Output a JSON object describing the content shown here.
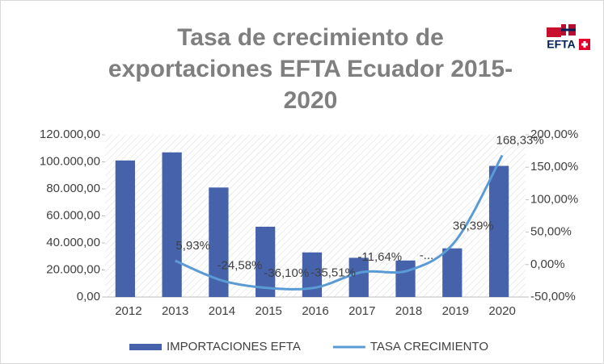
{
  "chart_data": {
    "type": "bar_line",
    "title": [
      "Tasa de crecimiento de",
      "exportaciones EFTA Ecuador 2015-",
      "2020"
    ],
    "logo": "EFTA",
    "categories": [
      "2012",
      "2013",
      "2014",
      "2015",
      "2016",
      "2017",
      "2018",
      "2019",
      "2020"
    ],
    "series": [
      {
        "name": "IMPORTACIONES EFTA",
        "color": "#4562ab",
        "type": "bar",
        "values": [
          101000,
          107000,
          81000,
          52000,
          33000,
          29000,
          27000,
          36000,
          97000
        ]
      },
      {
        "name": "TASA CRECIMIENTO",
        "color": "#5b9bd5",
        "type": "line",
        "axis": "y2",
        "values": [
          null,
          5.93,
          -24.58,
          -36.1,
          -35.51,
          -11.64,
          -9,
          36.39,
          168.33
        ],
        "value_labels": [
          null,
          "5,93%",
          "-24,58%",
          "-36,10%",
          "-35,51%",
          "-11,64%",
          "-...",
          "36,39%",
          "168,33%"
        ]
      }
    ],
    "ylim": [
      0,
      120000
    ],
    "yticks": [
      {
        "value": 0,
        "label": "0,00"
      },
      {
        "value": 20000,
        "label": "20.000,00"
      },
      {
        "value": 40000,
        "label": "40.000,00"
      },
      {
        "value": 60000,
        "label": "60.000,00"
      },
      {
        "value": 80000,
        "label": "80.000,00"
      },
      {
        "value": 100000,
        "label": "100.000,00"
      },
      {
        "value": 120000,
        "label": "120.000,00"
      }
    ],
    "y2lim": [
      -50,
      200
    ],
    "y2ticks": [
      {
        "value": -50,
        "label": "-50,00%"
      },
      {
        "value": 0,
        "label": "0,00%"
      },
      {
        "value": 50,
        "label": "50,00%"
      },
      {
        "value": 100,
        "label": "100,00%"
      },
      {
        "value": 150,
        "label": "150,00%"
      },
      {
        "value": 200,
        "label": "200,00%"
      }
    ],
    "legend": "bottom"
  }
}
